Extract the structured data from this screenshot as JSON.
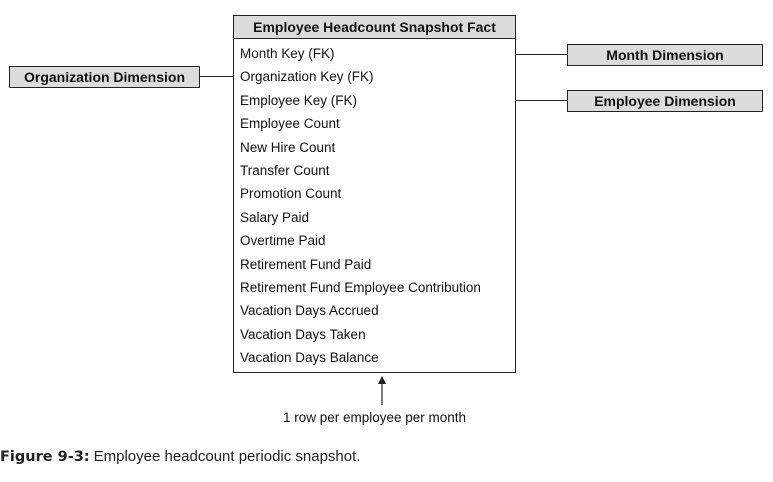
{
  "fact_table": {
    "title": "Employee Headcount Snapshot Fact",
    "columns": [
      "Month Key (FK)",
      "Organization Key (FK)",
      "Employee Key (FK)",
      "Employee Count",
      "New Hire Count",
      "Transfer Count",
      "Promotion Count",
      "Salary Paid",
      "Overtime Paid",
      "Retirement Fund Paid",
      "Retirement Fund Employee Contribution",
      "Vacation Days Accrued",
      "Vacation Days Taken",
      "Vacation Days Balance"
    ]
  },
  "dimensions": {
    "organization": "Organization Dimension",
    "month": "Month Dimension",
    "employee": "Employee Dimension"
  },
  "grain_note": "1 row per employee per month",
  "caption": {
    "label": "Figure 9-3:",
    "text": "Employee headcount periodic snapshot."
  }
}
